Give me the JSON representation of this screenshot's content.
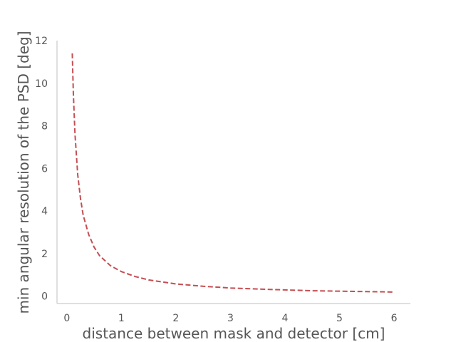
{
  "chart_data": {
    "type": "line",
    "title": "",
    "xlabel": "distance between mask and detector [cm]",
    "ylabel": "min angular resolution of the PSD [deg]",
    "xlim": [
      -0.18,
      6.3
    ],
    "ylim": [
      -0.35,
      12.0
    ],
    "xticks": [
      "0",
      "1",
      "2",
      "3",
      "4",
      "5",
      "6"
    ],
    "yticks": [
      "0",
      "2",
      "4",
      "6",
      "8",
      "10",
      "12"
    ],
    "grid": false,
    "legend": "none",
    "series": [
      {
        "color": "#c44e52",
        "style": "dashed",
        "x": [
          0.1,
          0.12,
          0.15,
          0.2,
          0.25,
          0.3,
          0.4,
          0.5,
          0.6,
          0.8,
          1.0,
          1.25,
          1.5,
          2.0,
          2.5,
          3.0,
          3.5,
          4.0,
          4.5,
          5.0,
          5.5,
          6.0
        ],
        "y": [
          11.4,
          9.5,
          7.6,
          5.7,
          4.6,
          3.8,
          2.9,
          2.3,
          1.9,
          1.43,
          1.15,
          0.92,
          0.76,
          0.57,
          0.46,
          0.38,
          0.33,
          0.29,
          0.25,
          0.23,
          0.21,
          0.19
        ]
      }
    ]
  }
}
